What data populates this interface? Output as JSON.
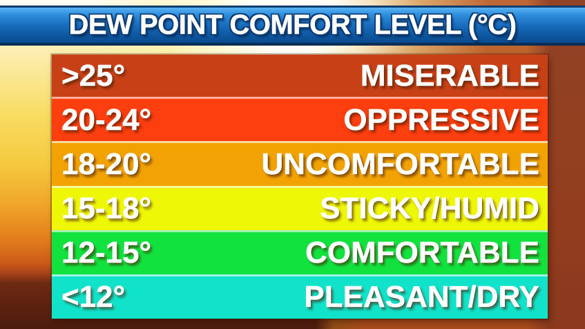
{
  "header": {
    "title": "DEW POINT COMFORT LEVEL (°C)",
    "bar_color_top": "#5ab4f4",
    "bar_color_bottom": "#0a4a8e"
  },
  "table": {
    "rows": [
      {
        "range": ">25°",
        "label": "MISERABLE",
        "color": "#c84116"
      },
      {
        "range": "20-24°",
        "label": "OPPRESSIVE",
        "color": "#fd3e0e"
      },
      {
        "range": "18-20°",
        "label": "UNCOMFORTABLE",
        "color": "#f2a303"
      },
      {
        "range": "15-18°",
        "label": "STICKY/HUMID",
        "color": "#eef705"
      },
      {
        "range": "12-15°",
        "label": "COMFORTABLE",
        "color": "#12e23e"
      },
      {
        "range": "<12°",
        "label": "PLEASANT/DRY",
        "color": "#10e3c9"
      }
    ]
  },
  "chart_data": {
    "type": "table",
    "title": "DEW POINT COMFORT LEVEL (°C)",
    "rows": [
      [
        ">25°",
        "MISERABLE"
      ],
      [
        "20-24°",
        "OPPRESSIVE"
      ],
      [
        "18-20°",
        "UNCOMFORTABLE"
      ],
      [
        "15-18°",
        "STICKY/HUMID"
      ],
      [
        "12-15°",
        "COMFORTABLE"
      ],
      [
        "<12°",
        "PLEASANT/DRY"
      ]
    ],
    "row_colors": [
      "#c84116",
      "#fd3e0e",
      "#f2a303",
      "#eef705",
      "#12e23e",
      "#10e3c9"
    ],
    "legend_position": "none",
    "grid": false
  },
  "background": {
    "sun_color": "#fffdf2",
    "sky_top_color": "#fdf4cf",
    "sunset_orange": "#e4811e",
    "horizon_dark": "#5c2210",
    "right_side_brown": "#8e3a1e"
  }
}
